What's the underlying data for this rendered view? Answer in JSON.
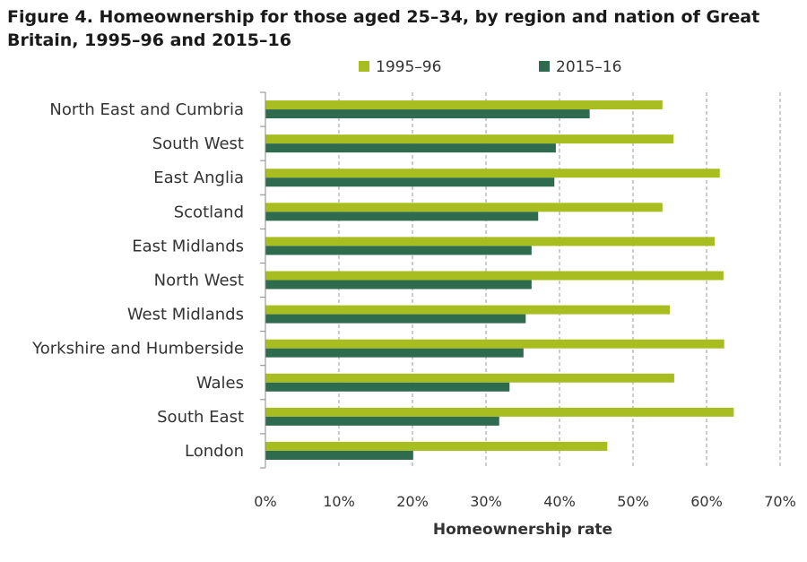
{
  "chart_data": {
    "type": "bar",
    "orientation": "horizontal",
    "title": "Figure 4. Homeownership for those aged 25–34, by region and nation of Great Britain, 1995–96 and 2015–16",
    "xlabel": "Homeownership rate",
    "ylabel": "",
    "xlim": [
      0,
      70
    ],
    "x_ticks": [
      "0%",
      "10%",
      "20%",
      "30%",
      "40%",
      "50%",
      "60%",
      "70%"
    ],
    "grid": "vertical dashed",
    "legend_position": "top",
    "categories": [
      "North East and Cumbria",
      "South West",
      "East Anglia",
      "Scotland",
      "East Midlands",
      "North West",
      "West Midlands",
      "Yorkshire and Humberside",
      "Wales",
      "South East",
      "London"
    ],
    "series": [
      {
        "name": "1995–96",
        "color": "#a8bd1f",
        "values": [
          54,
          55.5,
          61.8,
          54,
          61.1,
          62.3,
          55,
          62.4,
          55.6,
          63.7,
          46.5
        ]
      },
      {
        "name": "2015–16",
        "color": "#2f6b4f",
        "values": [
          44.1,
          39.5,
          39.3,
          37.1,
          36.2,
          36.2,
          35.4,
          35.1,
          33.2,
          31.8,
          20.1
        ]
      }
    ]
  }
}
